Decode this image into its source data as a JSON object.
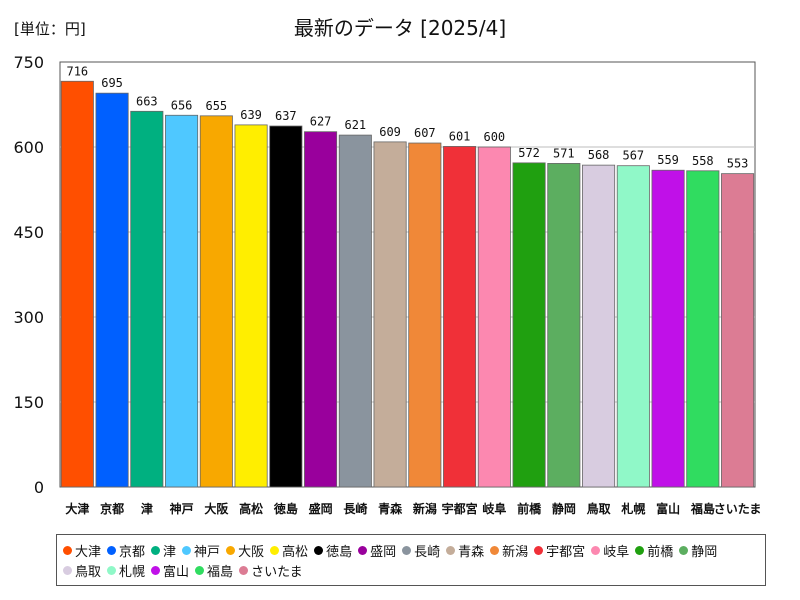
{
  "unit_label": "[単位：円]",
  "title": "最新のデータ [2025/4]",
  "chart_data": {
    "type": "bar",
    "title": "最新のデータ [2025/4]",
    "unit": "[単位：円]",
    "ylim": [
      0,
      750
    ],
    "yticks": [
      0,
      150,
      300,
      450,
      600,
      750
    ],
    "grid": true,
    "legend_position": "bottom",
    "categories": [
      "大津",
      "京都",
      "津",
      "神戸",
      "大阪",
      "高松",
      "徳島",
      "盛岡",
      "長崎",
      "青森",
      "新潟",
      "宇都宮",
      "岐阜",
      "前橋",
      "静岡",
      "鳥取",
      "札幌",
      "富山",
      "福島",
      "さいたま"
    ],
    "values": [
      716,
      695,
      663,
      656,
      655,
      639,
      637,
      627,
      621,
      609,
      607,
      601,
      600,
      572,
      571,
      568,
      567,
      559,
      558,
      553
    ],
    "colors": [
      "#ff4f00",
      "#0060ff",
      "#00b080",
      "#4fc8ff",
      "#f8a800",
      "#ffee00",
      "#000000",
      "#99009c",
      "#8a949e",
      "#c4ad9a",
      "#f08838",
      "#f03038",
      "#fc88b0",
      "#20a010",
      "#5cae60",
      "#d8cce0",
      "#90f8c8",
      "#c010e8",
      "#30dc60",
      "#dc7c94"
    ]
  }
}
